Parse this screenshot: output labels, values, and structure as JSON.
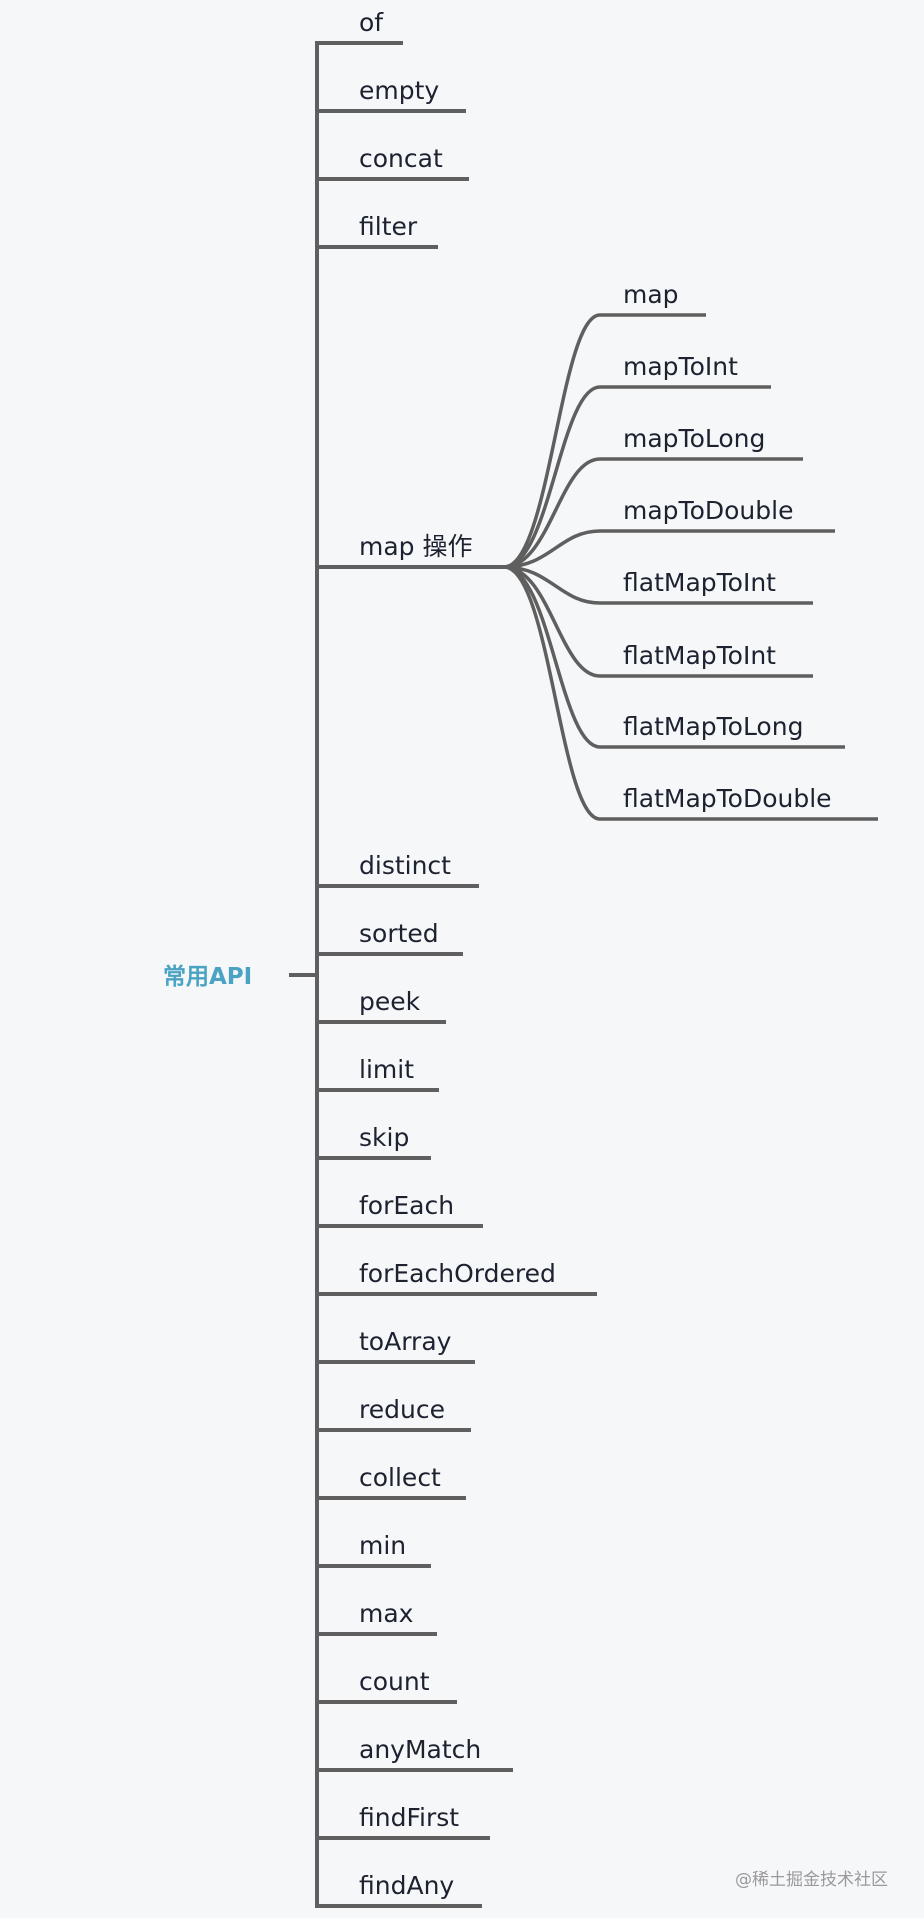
{
  "root": {
    "label": "常用API",
    "color": "#4aa3c3"
  },
  "line_color": "#5f5f5f",
  "children": [
    {
      "label": "of"
    },
    {
      "label": "empty"
    },
    {
      "label": "concat"
    },
    {
      "label": "filter"
    },
    {
      "label": "map 操作",
      "children": [
        {
          "label": "map"
        },
        {
          "label": "mapToInt"
        },
        {
          "label": "mapToLong"
        },
        {
          "label": "mapToDouble"
        },
        {
          "label": "flatMapToInt"
        },
        {
          "label": "flatMapToInt"
        },
        {
          "label": "flatMapToLong"
        },
        {
          "label": "flatMapToDouble"
        }
      ]
    },
    {
      "label": "distinct"
    },
    {
      "label": "sorted"
    },
    {
      "label": "peek"
    },
    {
      "label": "limit"
    },
    {
      "label": "skip"
    },
    {
      "label": "forEach"
    },
    {
      "label": "forEachOrdered"
    },
    {
      "label": "toArray"
    },
    {
      "label": "reduce"
    },
    {
      "label": "collect"
    },
    {
      "label": "min"
    },
    {
      "label": "max"
    },
    {
      "label": "count"
    },
    {
      "label": "anyMatch"
    },
    {
      "label": "findFirst"
    },
    {
      "label": "findAny"
    }
  ],
  "watermark": "@稀土掘金技术社区"
}
